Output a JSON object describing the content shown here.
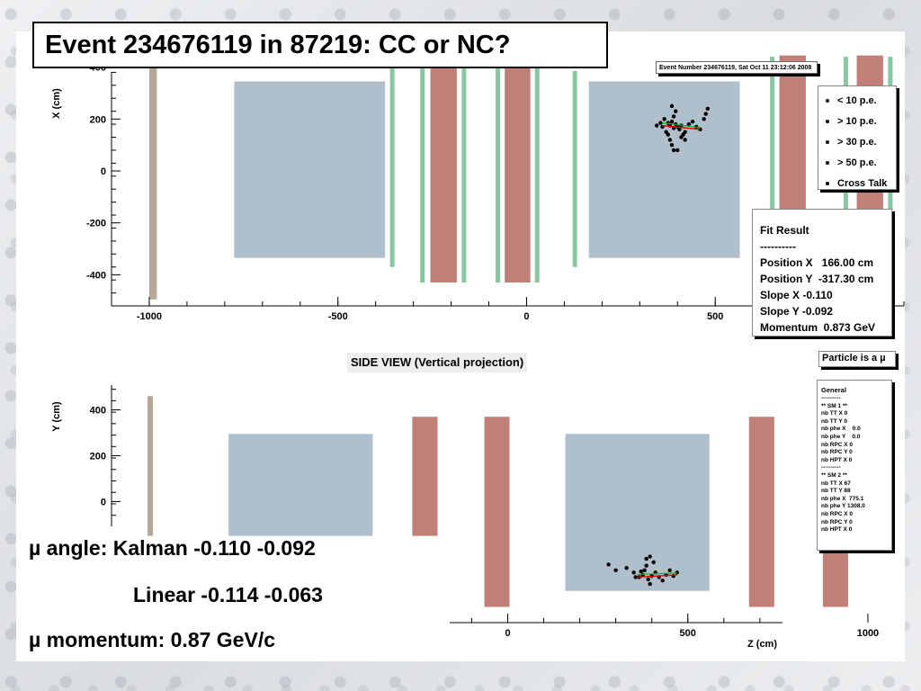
{
  "slide": {
    "title": "Event 234676119 in 87219: CC or NC?",
    "mu_angle": "µ angle: Kalman -0.110 -0.092",
    "linear": "Linear   -0.114 -0.063",
    "mu_momentum": "µ momentum: 0.87 GeV/c"
  },
  "event_number": "Event Number 234676119, Sat Oct 11 23:12:06 2008",
  "side_view_title": "SIDE VIEW (Vertical projection)",
  "legend": {
    "items": [
      "< 10 p.e.",
      "> 10 p.e.",
      "> 30 p.e.",
      "> 50 p.e.",
      "Cross Talk"
    ]
  },
  "fit_result": {
    "title": "Fit Result",
    "lines": [
      "Position X   166.00 cm",
      "Position Y  -317.30 cm",
      "Slope X -0.110",
      "Slope Y -0.092",
      "Momentum  0.873 GeV"
    ]
  },
  "particle": "Particle is a µ",
  "general": {
    "title": "General",
    "lines": [
      "** SM 1 **",
      "nb TT X 0",
      "nb TT Y 0",
      "nb phe X    0.0",
      "nb phe Y    0.0",
      "nb RPC X 0",
      "nb RPC Y 0",
      "nb HPT X 0",
      "----------",
      "** SM 2 **",
      "nb TT X 67",
      "nb TT Y 88",
      "nb phe X  775.1",
      "nb phe Y 1308.0",
      "nb RPC X 0",
      "nb RPC Y 0",
      "nb HPT X 0"
    ]
  },
  "colors": {
    "target": "#afbfcb",
    "magnet": "#c08078",
    "rpc": "#88c8a0",
    "veto": "#b5a898",
    "hits": "#000000"
  },
  "chart_data": [
    {
      "type": "scatter",
      "view": "top",
      "xlabel": "",
      "ylabel": "X (cm)",
      "x_ticks": [
        -1000,
        -500,
        0,
        500
      ],
      "y_ticks": [
        400,
        200,
        0,
        -200,
        -400
      ],
      "xlim": [
        -1100,
        1000
      ],
      "ylim": [
        -520,
        520
      ],
      "detectors": [
        {
          "kind": "veto",
          "z": [
            -1000,
            -980
          ],
          "y": [
            -495,
            510
          ]
        },
        {
          "kind": "target",
          "z": [
            -775,
            -375
          ],
          "y": [
            -335,
            345
          ]
        },
        {
          "kind": "target",
          "z": [
            165,
            565
          ],
          "y": [
            -335,
            345
          ]
        },
        {
          "kind": "rpc",
          "z": [
            -362,
            -350
          ],
          "y": [
            -370,
            440
          ]
        },
        {
          "kind": "rpc",
          "z": [
            -282,
            -270
          ],
          "y": [
            -430,
            440
          ]
        },
        {
          "kind": "magnet",
          "z": [
            -255,
            -185
          ],
          "y": [
            -430,
            445
          ]
        },
        {
          "kind": "rpc",
          "z": [
            -172,
            -160
          ],
          "y": [
            -430,
            440
          ]
        },
        {
          "kind": "rpc",
          "z": [
            -82,
            -70
          ],
          "y": [
            -430,
            440
          ]
        },
        {
          "kind": "magnet",
          "z": [
            -58,
            10
          ],
          "y": [
            -430,
            445
          ]
        },
        {
          "kind": "rpc",
          "z": [
            22,
            34
          ],
          "y": [
            -430,
            440
          ]
        },
        {
          "kind": "rpc",
          "z": [
            122,
            134
          ],
          "y": [
            -370,
            385
          ]
        },
        {
          "kind": "rpc",
          "z": [
            645,
            657
          ],
          "y": [
            -430,
            440
          ]
        },
        {
          "kind": "magnet",
          "z": [
            670,
            740
          ],
          "y": [
            -430,
            445
          ]
        },
        {
          "kind": "rpc",
          "z": [
            840,
            852
          ],
          "y": [
            -430,
            440
          ]
        },
        {
          "kind": "magnet",
          "z": [
            875,
            945
          ],
          "y": [
            -430,
            445
          ]
        },
        {
          "kind": "rpc",
          "z": [
            958,
            970
          ],
          "y": [
            -430,
            440
          ]
        }
      ],
      "hits": [
        [
          375,
          185
        ],
        [
          380,
          175
        ],
        [
          385,
          190
        ],
        [
          390,
          165
        ],
        [
          395,
          180
        ],
        [
          400,
          170
        ],
        [
          405,
          160
        ],
        [
          410,
          175
        ],
        [
          360,
          170
        ],
        [
          370,
          150
        ],
        [
          375,
          140
        ],
        [
          380,
          120
        ],
        [
          385,
          100
        ],
        [
          390,
          80
        ],
        [
          400,
          80
        ],
        [
          410,
          130
        ],
        [
          420,
          150
        ],
        [
          430,
          180
        ],
        [
          440,
          190
        ],
        [
          450,
          170
        ],
        [
          460,
          160
        ],
        [
          470,
          200
        ],
        [
          475,
          220
        ],
        [
          480,
          240
        ],
        [
          365,
          200
        ],
        [
          355,
          185
        ],
        [
          345,
          175
        ],
        [
          390,
          210
        ],
        [
          395,
          230
        ],
        [
          385,
          250
        ],
        [
          420,
          120
        ],
        [
          415,
          140
        ]
      ],
      "fit_track": {
        "x": [
          360,
          460
        ],
        "y": [
          175,
          160
        ]
      }
    },
    {
      "type": "scatter",
      "view": "side",
      "xlabel": "Z (cm)",
      "ylabel": "Y (cm)",
      "x_ticks": [
        0,
        500,
        1000
      ],
      "y_ticks": [
        400,
        200,
        0
      ],
      "xlim": [
        -1100,
        1100
      ],
      "ylim": [
        -560,
        520
      ],
      "detectors": [
        {
          "kind": "veto",
          "z": [
            -1000,
            -985
          ],
          "y": [
            -150,
            460
          ]
        },
        {
          "kind": "target",
          "z": [
            -775,
            -375
          ],
          "y": [
            -150,
            295
          ]
        },
        {
          "kind": "target",
          "z": [
            160,
            560
          ],
          "y": [
            -390,
            295
          ]
        },
        {
          "kind": "magnet",
          "z": [
            -265,
            -195
          ],
          "y": [
            -150,
            370
          ]
        },
        {
          "kind": "magnet",
          "z": [
            -65,
            5
          ],
          "y": [
            -460,
            370
          ]
        },
        {
          "kind": "magnet",
          "z": [
            670,
            740
          ],
          "y": [
            -460,
            370
          ]
        },
        {
          "kind": "magnet",
          "z": [
            875,
            945
          ],
          "y": [
            -460,
            370
          ]
        }
      ],
      "hits": [
        [
          280,
          -275
        ],
        [
          300,
          -300
        ],
        [
          330,
          -290
        ],
        [
          350,
          -310
        ],
        [
          365,
          -330
        ],
        [
          375,
          -320
        ],
        [
          380,
          -300
        ],
        [
          385,
          -280
        ],
        [
          390,
          -340
        ],
        [
          395,
          -360
        ],
        [
          400,
          -325
        ],
        [
          410,
          -310
        ],
        [
          420,
          -330
        ],
        [
          430,
          -345
        ],
        [
          440,
          -320
        ],
        [
          450,
          -300
        ],
        [
          460,
          -325
        ],
        [
          470,
          -310
        ],
        [
          385,
          -250
        ],
        [
          395,
          -240
        ],
        [
          405,
          -265
        ],
        [
          370,
          -305
        ],
        [
          355,
          -330
        ]
      ],
      "fit_track": {
        "x": [
          360,
          470
        ],
        "y": [
          -330,
          -320
        ]
      }
    }
  ]
}
